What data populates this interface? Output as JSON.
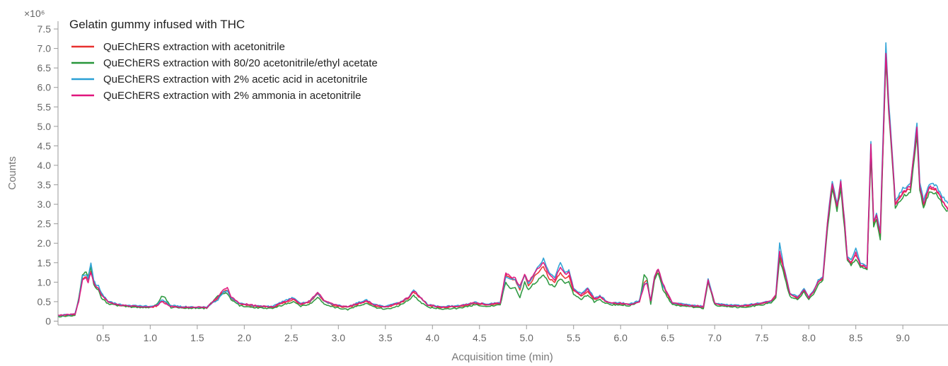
{
  "chart_data": {
    "type": "line",
    "title": "Gelatin gummy infused with THC",
    "xlabel": "Acquisition time (min)",
    "ylabel": "Counts",
    "y_multiplier": "×10⁶",
    "xlim": [
      0.02,
      9.48
    ],
    "ylim": [
      -0.1,
      7.7
    ],
    "x_ticks": [
      0.5,
      1.0,
      1.5,
      2.0,
      2.5,
      3.0,
      3.5,
      4.0,
      4.5,
      5.0,
      5.5,
      6.0,
      6.5,
      7.0,
      7.5,
      8.0,
      8.5,
      9.0
    ],
    "x_tick_labels": [
      "0.5",
      "1.0",
      "1.5",
      "2.0",
      "2.5",
      "3.0",
      "3.5",
      "4.0",
      "4.5",
      "5.0",
      "5.5",
      "6.0",
      "6.5",
      "7.0",
      "7.5",
      "8.0",
      "8.5",
      "9.0"
    ],
    "y_ticks": [
      0,
      0.5,
      1.0,
      1.5,
      2.0,
      2.5,
      3.0,
      3.5,
      4.0,
      4.5,
      5.0,
      5.5,
      6.0,
      6.5,
      7.0,
      7.5
    ],
    "y_tick_labels": [
      "0",
      "0.5",
      "1.0",
      "1.5",
      "2.0",
      "2.5",
      "3.0",
      "3.5",
      "4.0",
      "4.5",
      "5.0",
      "5.5",
      "6.0",
      "6.5",
      "7.0",
      "7.5"
    ],
    "grid": false,
    "legend_position": "top-left",
    "series": [
      {
        "name": "QuEChERS extraction with acetonitrile",
        "color": "#e8312f",
        "x": [
          0.02,
          0.1,
          0.2,
          0.24,
          0.28,
          0.32,
          0.34,
          0.37,
          0.4,
          0.42,
          0.45,
          0.48,
          0.55,
          0.65,
          0.8,
          1.0,
          1.08,
          1.12,
          1.16,
          1.22,
          1.35,
          1.6,
          1.72,
          1.78,
          1.82,
          1.86,
          1.95,
          2.1,
          2.3,
          2.45,
          2.52,
          2.6,
          2.7,
          2.78,
          2.85,
          2.95,
          3.1,
          3.22,
          3.3,
          3.38,
          3.5,
          3.65,
          3.75,
          3.8,
          3.87,
          3.95,
          4.1,
          4.3,
          4.45,
          4.6,
          4.72,
          4.78,
          4.82,
          4.88,
          4.93,
          4.98,
          5.02,
          5.05,
          5.1,
          5.18,
          5.24,
          5.3,
          5.36,
          5.41,
          5.45,
          5.5,
          5.58,
          5.65,
          5.72,
          5.78,
          5.85,
          5.9,
          6.0,
          6.1,
          6.2,
          6.25,
          6.28,
          6.32,
          6.36,
          6.4,
          6.45,
          6.55,
          6.7,
          6.88,
          6.93,
          7.0,
          7.1,
          7.3,
          7.5,
          7.6,
          7.65,
          7.69,
          7.73,
          7.8,
          7.88,
          7.95,
          8.0,
          8.05,
          8.1,
          8.15,
          8.2,
          8.25,
          8.3,
          8.34,
          8.38,
          8.41,
          8.45,
          8.5,
          8.55,
          8.62,
          8.66,
          8.69,
          8.72,
          8.76,
          8.82,
          8.85,
          8.88,
          8.92,
          9.0,
          9.08,
          9.15,
          9.18,
          9.22,
          9.28,
          9.35,
          9.42,
          9.48
        ],
        "values": [
          0.15,
          0.15,
          0.17,
          0.55,
          1.1,
          1.15,
          1.05,
          1.3,
          1.0,
          0.9,
          0.85,
          0.7,
          0.5,
          0.4,
          0.38,
          0.35,
          0.4,
          0.52,
          0.48,
          0.38,
          0.35,
          0.35,
          0.6,
          0.75,
          0.8,
          0.6,
          0.45,
          0.38,
          0.35,
          0.5,
          0.55,
          0.42,
          0.5,
          0.7,
          0.5,
          0.4,
          0.35,
          0.45,
          0.5,
          0.4,
          0.35,
          0.45,
          0.6,
          0.75,
          0.6,
          0.4,
          0.35,
          0.38,
          0.45,
          0.42,
          0.45,
          1.2,
          1.1,
          1.05,
          0.8,
          1.2,
          0.9,
          1.0,
          1.2,
          1.4,
          1.1,
          1.0,
          1.25,
          1.1,
          1.15,
          0.8,
          0.65,
          0.75,
          0.55,
          0.62,
          0.5,
          0.45,
          0.45,
          0.42,
          0.5,
          1.0,
          1.05,
          0.5,
          1.1,
          1.3,
          0.9,
          0.45,
          0.4,
          0.35,
          1.05,
          0.45,
          0.4,
          0.38,
          0.45,
          0.5,
          0.65,
          1.7,
          1.35,
          0.7,
          0.6,
          0.8,
          0.6,
          0.75,
          1.0,
          1.1,
          2.5,
          3.5,
          2.9,
          3.5,
          2.5,
          1.6,
          1.5,
          1.7,
          1.45,
          1.35,
          4.4,
          2.5,
          2.7,
          2.2,
          6.8,
          5.5,
          4.5,
          3.0,
          3.3,
          3.4,
          4.9,
          3.5,
          3.0,
          3.4,
          3.4,
          3.1,
          2.9
        ]
      },
      {
        "name": "QuEChERS extraction with 80/20 acetonitrile/ethyl acetate",
        "color": "#27963a",
        "x": [
          0.02,
          0.1,
          0.2,
          0.24,
          0.28,
          0.32,
          0.34,
          0.37,
          0.4,
          0.42,
          0.45,
          0.48,
          0.55,
          0.65,
          0.8,
          1.0,
          1.08,
          1.12,
          1.16,
          1.22,
          1.35,
          1.6,
          1.72,
          1.78,
          1.82,
          1.86,
          1.95,
          2.1,
          2.3,
          2.45,
          2.52,
          2.6,
          2.7,
          2.78,
          2.85,
          2.95,
          3.1,
          3.22,
          3.3,
          3.38,
          3.5,
          3.65,
          3.75,
          3.8,
          3.87,
          3.95,
          4.1,
          4.3,
          4.45,
          4.6,
          4.72,
          4.78,
          4.82,
          4.88,
          4.93,
          4.98,
          5.02,
          5.05,
          5.1,
          5.18,
          5.24,
          5.3,
          5.36,
          5.41,
          5.45,
          5.5,
          5.58,
          5.65,
          5.72,
          5.78,
          5.85,
          5.9,
          6.0,
          6.1,
          6.2,
          6.25,
          6.28,
          6.32,
          6.36,
          6.4,
          6.45,
          6.55,
          6.7,
          6.88,
          6.93,
          7.0,
          7.1,
          7.3,
          7.5,
          7.6,
          7.65,
          7.69,
          7.73,
          7.8,
          7.88,
          7.95,
          8.0,
          8.05,
          8.1,
          8.15,
          8.2,
          8.25,
          8.3,
          8.34,
          8.38,
          8.41,
          8.45,
          8.5,
          8.55,
          8.62,
          8.66,
          8.69,
          8.72,
          8.76,
          8.82,
          8.85,
          8.88,
          8.92,
          9.0,
          9.08,
          9.15,
          9.18,
          9.22,
          9.28,
          9.35,
          9.42,
          9.48
        ],
        "values": [
          0.12,
          0.13,
          0.15,
          0.6,
          1.2,
          1.25,
          1.15,
          1.4,
          0.95,
          0.85,
          0.8,
          0.6,
          0.45,
          0.4,
          0.36,
          0.35,
          0.45,
          0.65,
          0.6,
          0.35,
          0.34,
          0.33,
          0.65,
          0.72,
          0.7,
          0.55,
          0.4,
          0.35,
          0.32,
          0.45,
          0.5,
          0.38,
          0.45,
          0.6,
          0.45,
          0.36,
          0.3,
          0.4,
          0.45,
          0.36,
          0.3,
          0.4,
          0.55,
          0.65,
          0.5,
          0.35,
          0.32,
          0.33,
          0.42,
          0.38,
          0.42,
          1.0,
          0.85,
          0.85,
          0.6,
          1.0,
          0.8,
          0.9,
          1.0,
          1.2,
          0.95,
          0.9,
          1.1,
          0.95,
          1.0,
          0.7,
          0.55,
          0.68,
          0.5,
          0.55,
          0.45,
          0.42,
          0.42,
          0.4,
          0.5,
          1.2,
          1.1,
          0.45,
          1.05,
          1.25,
          0.8,
          0.42,
          0.38,
          0.33,
          1.0,
          0.42,
          0.37,
          0.35,
          0.42,
          0.48,
          0.6,
          1.6,
          1.25,
          0.62,
          0.55,
          0.75,
          0.55,
          0.7,
          0.95,
          1.05,
          2.4,
          3.4,
          2.85,
          3.4,
          2.4,
          1.55,
          1.45,
          1.6,
          1.4,
          1.3,
          4.3,
          2.4,
          2.6,
          2.1,
          6.7,
          5.4,
          4.4,
          2.9,
          3.2,
          3.3,
          4.8,
          3.4,
          2.9,
          3.3,
          3.3,
          3.0,
          2.8
        ]
      },
      {
        "name": "QuEChERS extraction with 2% acetic acid in acetonitrile",
        "color": "#2aa0d5",
        "x": [
          0.02,
          0.1,
          0.2,
          0.24,
          0.28,
          0.32,
          0.34,
          0.37,
          0.4,
          0.42,
          0.45,
          0.48,
          0.55,
          0.65,
          0.8,
          1.0,
          1.08,
          1.12,
          1.16,
          1.22,
          1.35,
          1.6,
          1.72,
          1.78,
          1.82,
          1.86,
          1.95,
          2.1,
          2.3,
          2.45,
          2.52,
          2.6,
          2.7,
          2.78,
          2.85,
          2.95,
          3.1,
          3.22,
          3.3,
          3.38,
          3.5,
          3.65,
          3.75,
          3.8,
          3.87,
          3.95,
          4.1,
          4.3,
          4.45,
          4.6,
          4.72,
          4.78,
          4.82,
          4.88,
          4.93,
          4.98,
          5.02,
          5.05,
          5.1,
          5.18,
          5.24,
          5.3,
          5.36,
          5.41,
          5.45,
          5.5,
          5.58,
          5.65,
          5.72,
          5.78,
          5.85,
          5.9,
          6.0,
          6.1,
          6.2,
          6.25,
          6.28,
          6.32,
          6.36,
          6.4,
          6.45,
          6.55,
          6.7,
          6.88,
          6.93,
          7.0,
          7.1,
          7.3,
          7.5,
          7.6,
          7.65,
          7.69,
          7.73,
          7.8,
          7.88,
          7.95,
          8.0,
          8.05,
          8.1,
          8.15,
          8.2,
          8.25,
          8.3,
          8.34,
          8.38,
          8.41,
          8.45,
          8.5,
          8.55,
          8.62,
          8.66,
          8.69,
          8.72,
          8.76,
          8.82,
          8.85,
          8.88,
          8.92,
          9.0,
          9.08,
          9.15,
          9.18,
          9.22,
          9.28,
          9.35,
          9.42,
          9.48
        ],
        "values": [
          0.15,
          0.16,
          0.18,
          0.55,
          1.15,
          1.2,
          1.1,
          1.5,
          1.05,
          0.95,
          0.9,
          0.72,
          0.52,
          0.43,
          0.4,
          0.38,
          0.42,
          0.55,
          0.5,
          0.4,
          0.37,
          0.36,
          0.55,
          0.75,
          0.78,
          0.6,
          0.45,
          0.4,
          0.37,
          0.55,
          0.6,
          0.45,
          0.52,
          0.72,
          0.52,
          0.42,
          0.37,
          0.48,
          0.55,
          0.42,
          0.37,
          0.48,
          0.62,
          0.8,
          0.62,
          0.42,
          0.37,
          0.4,
          0.48,
          0.44,
          0.47,
          1.15,
          1.1,
          1.05,
          0.85,
          1.2,
          0.95,
          1.05,
          1.3,
          1.6,
          1.25,
          1.1,
          1.5,
          1.25,
          1.3,
          0.85,
          0.7,
          0.85,
          0.6,
          0.65,
          0.52,
          0.47,
          0.47,
          0.44,
          0.52,
          0.95,
          1.0,
          0.52,
          1.15,
          1.35,
          0.92,
          0.47,
          0.42,
          0.38,
          1.1,
          0.47,
          0.42,
          0.4,
          0.47,
          0.52,
          0.68,
          2.0,
          1.45,
          0.72,
          0.62,
          0.82,
          0.62,
          0.78,
          1.05,
          1.15,
          2.6,
          3.6,
          3.0,
          3.6,
          2.6,
          1.65,
          1.55,
          1.9,
          1.5,
          1.4,
          4.6,
          2.6,
          2.75,
          2.3,
          7.2,
          5.6,
          4.6,
          3.1,
          3.4,
          3.5,
          5.1,
          3.6,
          3.1,
          3.5,
          3.5,
          3.2,
          3.0
        ]
      },
      {
        "name": "QuEChERS extraction with 2% ammonia in acetonitrile",
        "color": "#e0157d",
        "x": [
          0.02,
          0.1,
          0.2,
          0.24,
          0.28,
          0.32,
          0.34,
          0.37,
          0.4,
          0.42,
          0.45,
          0.48,
          0.55,
          0.65,
          0.8,
          1.0,
          1.08,
          1.12,
          1.16,
          1.22,
          1.35,
          1.6,
          1.72,
          1.78,
          1.82,
          1.86,
          1.95,
          2.1,
          2.3,
          2.45,
          2.52,
          2.6,
          2.7,
          2.78,
          2.85,
          2.95,
          3.1,
          3.22,
          3.3,
          3.38,
          3.5,
          3.65,
          3.75,
          3.8,
          3.87,
          3.95,
          4.1,
          4.3,
          4.45,
          4.6,
          4.72,
          4.78,
          4.82,
          4.88,
          4.93,
          4.98,
          5.02,
          5.05,
          5.1,
          5.18,
          5.24,
          5.3,
          5.36,
          5.41,
          5.45,
          5.5,
          5.58,
          5.65,
          5.72,
          5.78,
          5.85,
          5.9,
          6.0,
          6.1,
          6.2,
          6.25,
          6.28,
          6.32,
          6.36,
          6.4,
          6.45,
          6.55,
          6.7,
          6.88,
          6.93,
          7.0,
          7.1,
          7.3,
          7.5,
          7.6,
          7.65,
          7.69,
          7.73,
          7.8,
          7.88,
          7.95,
          8.0,
          8.05,
          8.1,
          8.15,
          8.2,
          8.25,
          8.3,
          8.34,
          8.38,
          8.41,
          8.45,
          8.5,
          8.55,
          8.62,
          8.66,
          8.69,
          8.72,
          8.76,
          8.82,
          8.85,
          8.88,
          8.92,
          9.0,
          9.08,
          9.15,
          9.18,
          9.22,
          9.28,
          9.35,
          9.42,
          9.48
        ],
        "values": [
          0.16,
          0.16,
          0.18,
          0.5,
          1.05,
          1.1,
          1.0,
          1.25,
          1.0,
          0.9,
          0.85,
          0.68,
          0.5,
          0.42,
          0.38,
          0.36,
          0.4,
          0.5,
          0.45,
          0.38,
          0.36,
          0.35,
          0.62,
          0.8,
          0.85,
          0.62,
          0.46,
          0.4,
          0.36,
          0.52,
          0.58,
          0.44,
          0.52,
          0.75,
          0.52,
          0.42,
          0.37,
          0.47,
          0.52,
          0.42,
          0.36,
          0.47,
          0.62,
          0.78,
          0.62,
          0.42,
          0.36,
          0.4,
          0.47,
          0.43,
          0.47,
          1.25,
          1.15,
          1.1,
          0.9,
          1.2,
          1.0,
          1.1,
          1.3,
          1.5,
          1.2,
          1.05,
          1.4,
          1.2,
          1.25,
          0.82,
          0.68,
          0.82,
          0.58,
          0.62,
          0.5,
          0.46,
          0.46,
          0.43,
          0.5,
          0.9,
          0.98,
          0.5,
          1.15,
          1.35,
          0.95,
          0.46,
          0.41,
          0.37,
          1.05,
          0.46,
          0.41,
          0.39,
          0.46,
          0.52,
          0.68,
          1.8,
          1.4,
          0.7,
          0.6,
          0.82,
          0.6,
          0.76,
          1.02,
          1.12,
          2.55,
          3.55,
          2.95,
          3.55,
          2.55,
          1.6,
          1.5,
          1.75,
          1.45,
          1.38,
          4.5,
          2.55,
          2.7,
          2.25,
          6.9,
          5.5,
          4.5,
          3.0,
          3.3,
          3.45,
          5.0,
          3.5,
          3.0,
          3.45,
          3.4,
          3.1,
          2.85
        ]
      }
    ]
  }
}
